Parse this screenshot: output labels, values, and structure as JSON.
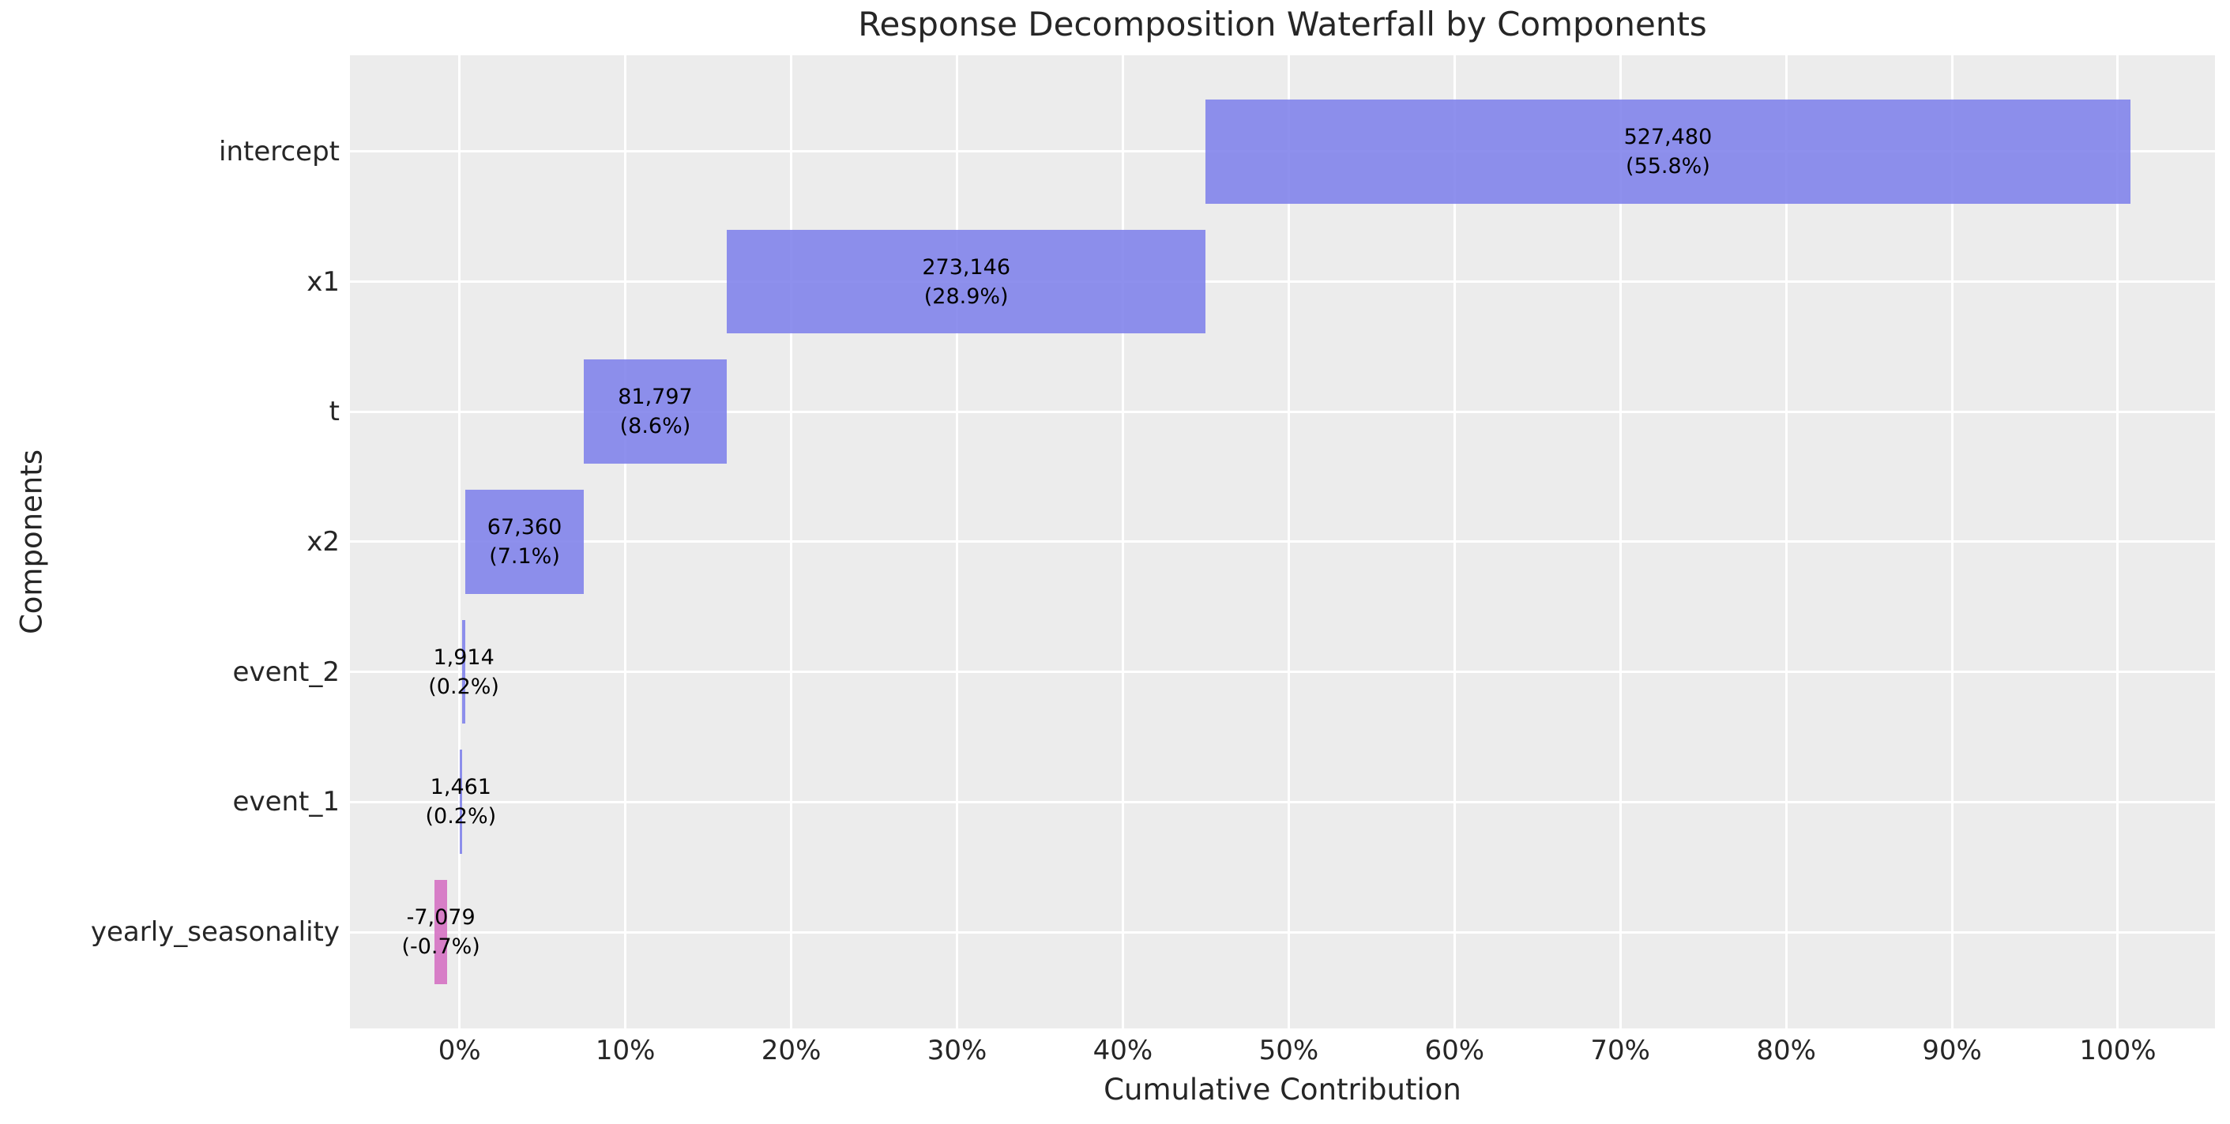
{
  "figure": {
    "title": "Response Decomposition Waterfall by Components",
    "x_axis_label": "Cumulative Contribution",
    "y_axis_label": "Components"
  },
  "chart_data": {
    "type": "bar",
    "subtype": "horizontal_waterfall",
    "title": "Response Decomposition Waterfall by Components",
    "xlabel": "Cumulative Contribution",
    "ylabel": "Components",
    "grid": true,
    "legend": false,
    "xlim": [
      -6.61,
      105.86
    ],
    "x_tick_unit": "percent",
    "x_ticks": [
      {
        "value": 0,
        "label": "0%"
      },
      {
        "value": 10,
        "label": "10%"
      },
      {
        "value": 20,
        "label": "20%"
      },
      {
        "value": 30,
        "label": "30%"
      },
      {
        "value": 40,
        "label": "40%"
      },
      {
        "value": 50,
        "label": "50%"
      },
      {
        "value": 60,
        "label": "60%"
      },
      {
        "value": 70,
        "label": "70%"
      },
      {
        "value": 80,
        "label": "80%"
      },
      {
        "value": 90,
        "label": "90%"
      },
      {
        "value": 100,
        "label": "100%"
      }
    ],
    "categories": [
      "intercept",
      "x1",
      "t",
      "x2",
      "event_2",
      "event_1",
      "yearly_seasonality"
    ],
    "bars": [
      {
        "category": "intercept",
        "value": 527480,
        "value_label": "527,480",
        "pct": 55.8,
        "pct_label": "(55.8%)",
        "span_pct": [
          44.99,
          100.75
        ],
        "role": "positive"
      },
      {
        "category": "x1",
        "value": 273146,
        "value_label": "273,146",
        "pct": 28.9,
        "pct_label": "(28.9%)",
        "span_pct": [
          16.12,
          44.99
        ],
        "role": "positive"
      },
      {
        "category": "t",
        "value": 81797,
        "value_label": "81,797",
        "pct": 8.6,
        "pct_label": "(8.6%)",
        "span_pct": [
          7.48,
          16.12
        ],
        "role": "positive"
      },
      {
        "category": "x2",
        "value": 67360,
        "value_label": "67,360",
        "pct": 7.1,
        "pct_label": "(7.1%)",
        "span_pct": [
          0.36,
          7.48
        ],
        "role": "positive"
      },
      {
        "category": "event_2",
        "value": 1914,
        "value_label": "1,914",
        "pct": 0.2,
        "pct_label": "(0.2%)",
        "span_pct": [
          0.15,
          0.36
        ],
        "role": "positive"
      },
      {
        "category": "event_1",
        "value": 1461,
        "value_label": "1,461",
        "pct": 0.2,
        "pct_label": "(0.2%)",
        "span_pct": [
          0.0,
          0.15
        ],
        "role": "positive"
      },
      {
        "category": "yearly_seasonality",
        "value": -7079,
        "value_label": "-7,079",
        "pct": -0.7,
        "pct_label": "(-0.7%)",
        "span_pct": [
          -1.5,
          -0.75
        ],
        "role": "negative"
      }
    ],
    "colors": {
      "positive_bar": "#7e81ea",
      "negative_bar": "#d46ec1",
      "positive_bar_displayed": "#8b8dea",
      "negative_bar_displayed": "#d77dc6",
      "plot_background": "#ececec",
      "gridline": "#ffffff",
      "figure_background": "#ffffff",
      "text": "#262626",
      "bar_label_text": "#000000"
    }
  }
}
